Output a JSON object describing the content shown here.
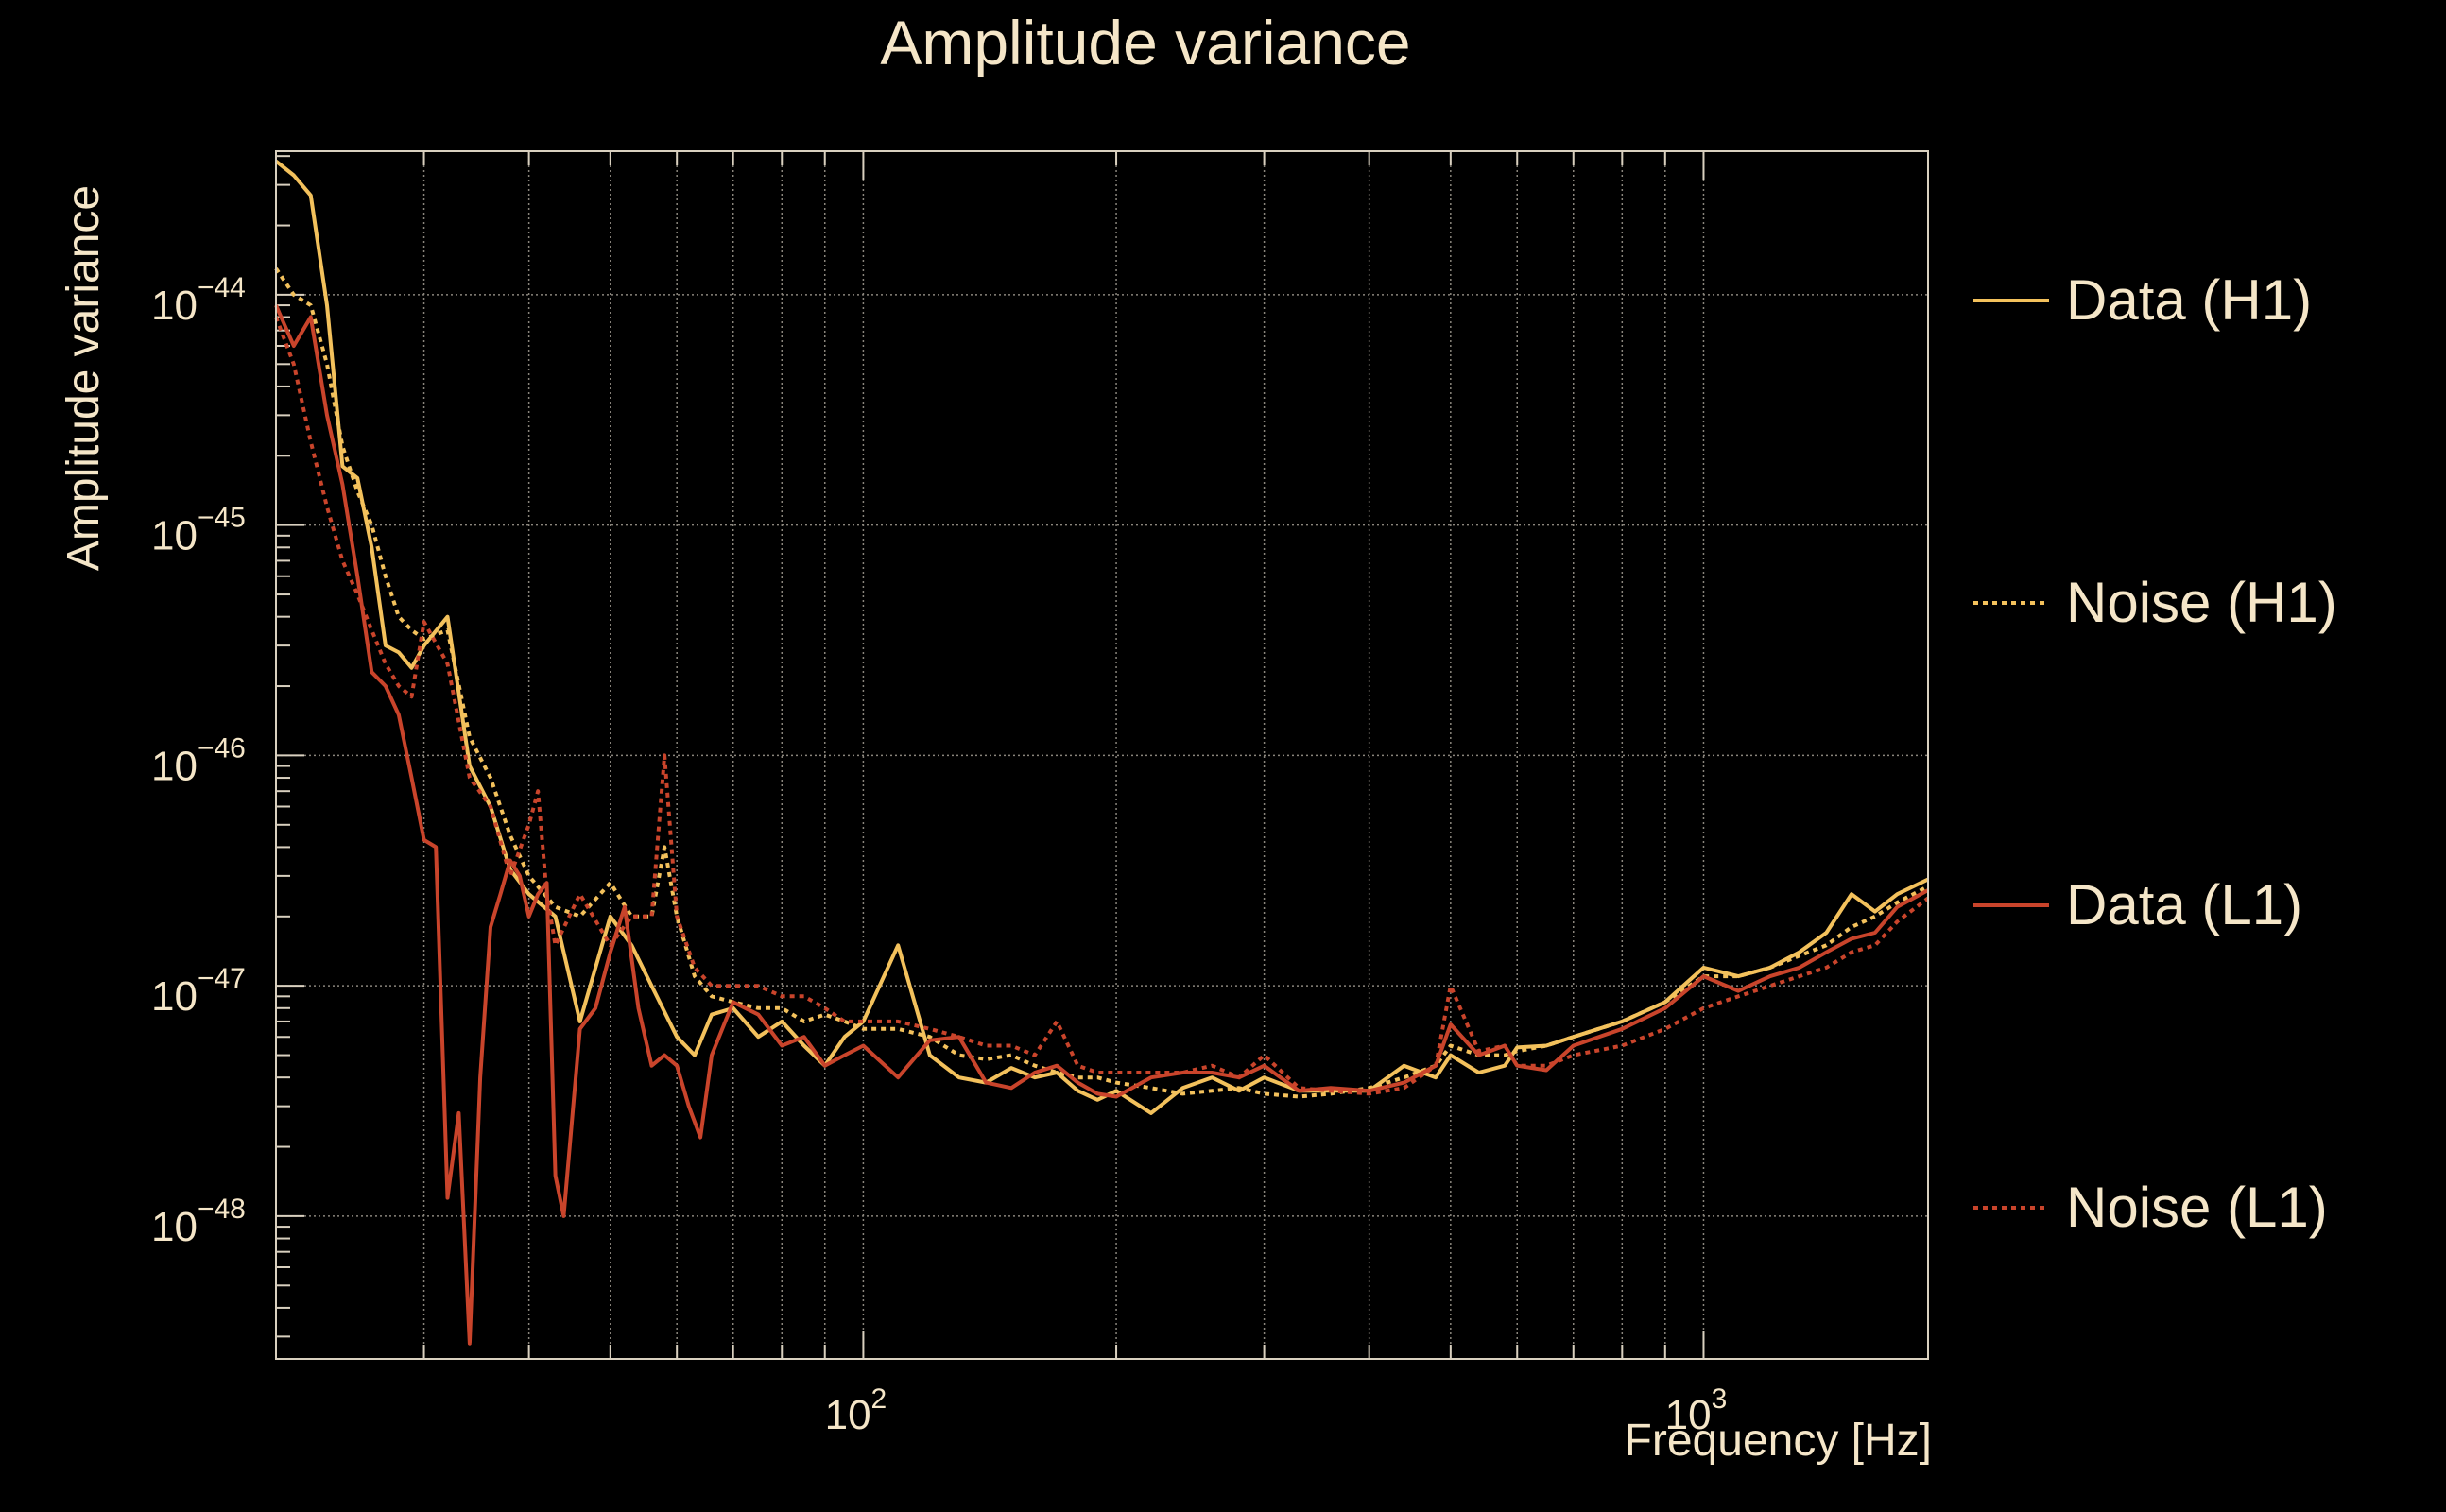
{
  "chart_data": {
    "type": "line",
    "title": "Amplitude variance",
    "xlabel": "Frequency [Hz]",
    "ylabel": "Amplitude variance",
    "x_scale": "log",
    "y_scale": "log",
    "xlim": [
      20,
      1850
    ],
    "ylim": [
      2.4e-49,
      4.2e-44
    ],
    "grid": true,
    "legend_position": "right",
    "colors": {
      "background": "#000000",
      "text": "#f5e6c8",
      "axis": "#d9d0bf",
      "grid": "#8a857c"
    },
    "x_tick_labels": [
      {
        "base": "10",
        "exp": "2",
        "value": 100
      },
      {
        "base": "10",
        "exp": "3",
        "value": 1000
      }
    ],
    "y_tick_labels": [
      {
        "base": "10",
        "exp": "−44",
        "value": 1e-44
      },
      {
        "base": "10",
        "exp": "−45",
        "value": 1e-45
      },
      {
        "base": "10",
        "exp": "−46",
        "value": 1e-46
      },
      {
        "base": "10",
        "exp": "−47",
        "value": 1e-47
      },
      {
        "base": "10",
        "exp": "−48",
        "value": 1e-48
      }
    ],
    "series": [
      {
        "name": "Data (H1)",
        "color": "#f3c15c",
        "dash": "solid",
        "x": [
          20,
          21,
          22,
          23,
          24,
          25,
          26,
          27,
          28,
          29,
          30,
          32,
          34,
          36,
          38,
          40,
          43,
          46,
          50,
          53,
          56,
          60,
          63,
          66,
          70,
          75,
          80,
          85,
          90,
          95,
          100,
          110,
          120,
          130,
          140,
          150,
          160,
          170,
          180,
          190,
          200,
          220,
          240,
          260,
          280,
          300,
          330,
          360,
          400,
          440,
          480,
          500,
          540,
          580,
          600,
          650,
          700,
          800,
          900,
          1000,
          1100,
          1200,
          1300,
          1400,
          1500,
          1600,
          1700,
          1850
        ],
        "y": [
          3.8e-44,
          3.3e-44,
          2.7e-44,
          9e-45,
          1.8e-45,
          1.6e-45,
          8e-46,
          3e-46,
          2.8e-46,
          2.4e-46,
          3e-46,
          4e-46,
          9e-47,
          6e-47,
          3.2e-47,
          2.5e-47,
          2e-47,
          7e-48,
          2e-47,
          1.5e-47,
          1e-47,
          6e-48,
          5e-48,
          7.5e-48,
          8e-48,
          6e-48,
          7e-48,
          5.5e-48,
          4.5e-48,
          6e-48,
          7e-48,
          1.5e-47,
          5e-48,
          4e-48,
          3.8e-48,
          4.4e-48,
          4e-48,
          4.2e-48,
          3.5e-48,
          3.2e-48,
          3.5e-48,
          2.8e-48,
          3.6e-48,
          4e-48,
          3.5e-48,
          4e-48,
          3.5e-48,
          3.5e-48,
          3.5e-48,
          4.5e-48,
          4e-48,
          5e-48,
          4.2e-48,
          4.5e-48,
          5.4e-48,
          5.5e-48,
          6e-48,
          7e-48,
          8.5e-48,
          1.2e-47,
          1.1e-47,
          1.2e-47,
          1.4e-47,
          1.7e-47,
          2.5e-47,
          2.1e-47,
          2.5e-47,
          2.9e-47
        ]
      },
      {
        "name": "Noise (H1)",
        "color": "#f3c15c",
        "dash": "dotted",
        "x": [
          20,
          21,
          22,
          23,
          24,
          25,
          26,
          27,
          28,
          29,
          30,
          32,
          34,
          36,
          38,
          40,
          43,
          46,
          50,
          53,
          56,
          58,
          60,
          63,
          66,
          70,
          75,
          80,
          85,
          90,
          95,
          100,
          110,
          120,
          130,
          140,
          150,
          160,
          170,
          180,
          190,
          200,
          220,
          240,
          260,
          280,
          300,
          330,
          360,
          400,
          440,
          480,
          500,
          540,
          580,
          600,
          650,
          700,
          800,
          900,
          1000,
          1100,
          1200,
          1300,
          1400,
          1500,
          1600,
          1700,
          1850
        ],
        "y": [
          1.3e-44,
          1e-44,
          9e-45,
          5e-45,
          2.2e-45,
          1.4e-45,
          1e-45,
          6e-46,
          4e-46,
          3.5e-46,
          3.2e-46,
          3.5e-46,
          1.2e-46,
          8e-47,
          4.5e-47,
          3e-47,
          2.2e-47,
          2e-47,
          2.8e-47,
          2e-47,
          2e-47,
          4e-47,
          2e-47,
          1.1e-47,
          9e-48,
          8.5e-48,
          8e-48,
          8e-48,
          7e-48,
          7.5e-48,
          7e-48,
          6.5e-48,
          6.5e-48,
          6e-48,
          5e-48,
          4.8e-48,
          5e-48,
          4.5e-48,
          4.2e-48,
          4e-48,
          4e-48,
          3.8e-48,
          3.6e-48,
          3.4e-48,
          3.5e-48,
          3.6e-48,
          3.4e-48,
          3.3e-48,
          3.4e-48,
          3.6e-48,
          4e-48,
          4.5e-48,
          5.5e-48,
          5e-48,
          5e-48,
          5.2e-48,
          5.5e-48,
          6e-48,
          7e-48,
          8.5e-48,
          1.1e-47,
          1.1e-47,
          1.2e-47,
          1.35e-47,
          1.5e-47,
          1.8e-47,
          2e-47,
          2.3e-47,
          2.7e-47
        ]
      },
      {
        "name": "Data (L1)",
        "color": "#c9442b",
        "dash": "solid",
        "x": [
          20,
          21,
          22,
          23,
          24,
          25,
          26,
          27,
          28,
          29,
          30,
          31,
          32,
          33,
          34,
          35,
          36,
          37,
          38,
          39,
          40,
          41,
          42,
          43,
          44,
          46,
          48,
          50,
          52,
          54,
          56,
          58,
          60,
          62,
          64,
          66,
          70,
          75,
          80,
          85,
          90,
          95,
          100,
          110,
          120,
          130,
          140,
          150,
          160,
          170,
          180,
          190,
          200,
          220,
          240,
          260,
          280,
          300,
          330,
          360,
          400,
          440,
          480,
          500,
          540,
          580,
          600,
          650,
          700,
          800,
          900,
          1000,
          1100,
          1200,
          1300,
          1400,
          1500,
          1600,
          1700,
          1850
        ],
        "y": [
          9e-45,
          6e-45,
          8e-45,
          3e-45,
          1.5e-45,
          6e-46,
          2.3e-46,
          2e-46,
          1.5e-46,
          8e-47,
          4.3e-47,
          4e-47,
          1.2e-48,
          2.8e-48,
          2.8e-49,
          4e-48,
          1.8e-47,
          2.5e-47,
          3.5e-47,
          3e-47,
          2e-47,
          2.5e-47,
          2.8e-47,
          1.5e-48,
          1e-48,
          6.5e-48,
          8e-48,
          1.4e-47,
          2.2e-47,
          8e-48,
          4.5e-48,
          5e-48,
          4.5e-48,
          3e-48,
          2.2e-48,
          5e-48,
          8.5e-48,
          7.5e-48,
          5.5e-48,
          6e-48,
          4.5e-48,
          5e-48,
          5.5e-48,
          4e-48,
          5.8e-48,
          6e-48,
          3.8e-48,
          3.6e-48,
          4.2e-48,
          4.5e-48,
          3.8e-48,
          3.4e-48,
          3.3e-48,
          4e-48,
          4.2e-48,
          4.2e-48,
          4e-48,
          4.5e-48,
          3.5e-48,
          3.6e-48,
          3.5e-48,
          3.8e-48,
          4.5e-48,
          6.8e-48,
          5e-48,
          5.5e-48,
          4.5e-48,
          4.3e-48,
          5.5e-48,
          6.5e-48,
          8e-48,
          1.1e-47,
          9.5e-48,
          1.1e-47,
          1.2e-47,
          1.4e-47,
          1.6e-47,
          1.7e-47,
          2.2e-47,
          2.6e-47
        ]
      },
      {
        "name": "Noise (L1)",
        "color": "#c9442b",
        "dash": "dotted",
        "x": [
          20,
          21,
          22,
          23,
          24,
          25,
          26,
          27,
          28,
          29,
          30,
          32,
          34,
          36,
          38,
          40,
          41,
          42,
          43,
          46,
          50,
          53,
          56,
          58,
          60,
          63,
          66,
          70,
          75,
          80,
          85,
          90,
          95,
          100,
          110,
          120,
          130,
          140,
          150,
          160,
          170,
          180,
          190,
          200,
          220,
          240,
          260,
          280,
          300,
          330,
          360,
          400,
          440,
          480,
          500,
          540,
          580,
          600,
          650,
          700,
          800,
          900,
          1000,
          1100,
          1200,
          1300,
          1400,
          1500,
          1600,
          1700,
          1850
        ],
        "y": [
          8e-45,
          5e-45,
          2.3e-45,
          1.2e-45,
          7e-46,
          5e-46,
          3.5e-46,
          2.5e-46,
          2e-46,
          1.8e-46,
          3.8e-46,
          2.5e-46,
          8e-47,
          6e-47,
          3e-47,
          5e-47,
          7e-47,
          2.5e-47,
          1.5e-47,
          2.5e-47,
          1.5e-47,
          2e-47,
          2e-47,
          1e-46,
          2e-47,
          1.2e-47,
          1e-47,
          1e-47,
          1e-47,
          9e-48,
          9e-48,
          8e-48,
          7e-48,
          7e-48,
          7e-48,
          6.5e-48,
          6e-48,
          5.5e-48,
          5.5e-48,
          5e-48,
          7e-48,
          4.5e-48,
          4.2e-48,
          4.2e-48,
          4.2e-48,
          4.2e-48,
          4.5e-48,
          4e-48,
          5e-48,
          3.6e-48,
          3.5e-48,
          3.4e-48,
          3.6e-48,
          4.5e-48,
          1e-47,
          5.2e-48,
          5.5e-48,
          4.5e-48,
          4.5e-48,
          5e-48,
          5.5e-48,
          6.5e-48,
          8e-48,
          9e-48,
          1e-47,
          1.1e-47,
          1.2e-47,
          1.4e-47,
          1.5e-47,
          1.9e-47,
          2.4e-47
        ]
      }
    ]
  }
}
